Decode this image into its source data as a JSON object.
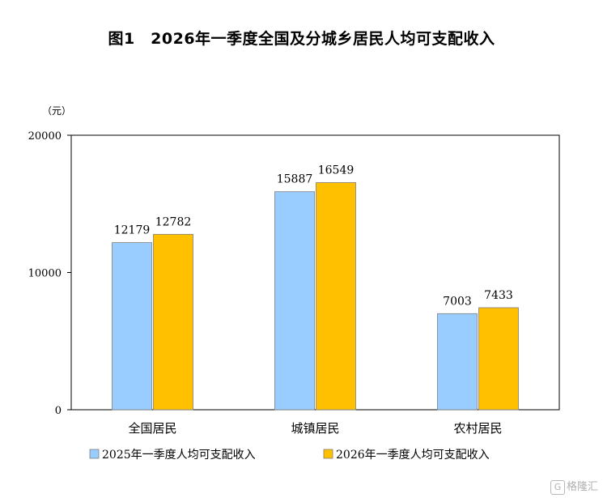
{
  "chart_data": {
    "type": "bar",
    "title": "图1　2026年一季度全国及分城乡居民人均可支配收入",
    "unit_label": "（元）",
    "categories": [
      "全国居民",
      "城镇居民",
      "农村居民"
    ],
    "series": [
      {
        "name": "2025年一季度人均可支配收入",
        "values": [
          12179,
          15887,
          7003
        ],
        "color": "#99ccff"
      },
      {
        "name": "2026年一季度人均可支配收入",
        "values": [
          12782,
          16549,
          7433
        ],
        "color": "#ffc000"
      }
    ],
    "ylim": [
      0,
      20000
    ],
    "yticks": [
      0,
      10000,
      20000
    ],
    "legend": "bottom",
    "grid": false
  },
  "watermark": {
    "icon": "G",
    "text": "格隆汇"
  }
}
